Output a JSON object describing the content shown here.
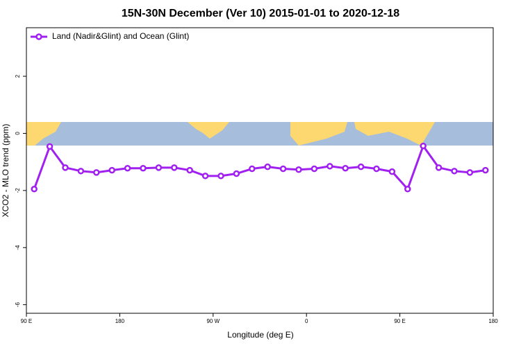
{
  "chart_data": {
    "type": "line",
    "title": "15N-30N December (Ver 10)   2015-01-01 to 2020-12-18",
    "x_label": "Longitude (deg E)",
    "y_label": "XCO2 - MLO trend (ppm)",
    "x": [
      97.5,
      112.5,
      127.5,
      142.5,
      157.5,
      172.5,
      187.5,
      202.5,
      217.5,
      232.5,
      247.5,
      262.5,
      277.5,
      292.5,
      307.5,
      322.5,
      337.5,
      352.5,
      367.5,
      382.5,
      397.5,
      412.5,
      427.5,
      442.5,
      457.5,
      472.5,
      487.5,
      502.5,
      517.5,
      532.5
    ],
    "series": [
      {
        "name": "Land (Nadir&Glint) and Ocean (Glint)",
        "color": "#a020f0",
        "values": [
          -1.95,
          -0.46,
          -1.2,
          -1.32,
          -1.37,
          -1.29,
          -1.22,
          -1.22,
          -1.2,
          -1.2,
          -1.29,
          -1.49,
          -1.49,
          -1.41,
          -1.24,
          -1.17,
          -1.24,
          -1.27,
          -1.24,
          -1.15,
          -1.22,
          -1.17,
          -1.24,
          -1.34,
          -1.95,
          -0.44,
          -1.2,
          -1.32,
          -1.37,
          -1.29
        ]
      }
    ],
    "xlim": [
      90,
      540
    ],
    "ylim": [
      -6.3,
      3.7
    ],
    "xticks": [
      {
        "value": 90,
        "label": "90 E"
      },
      180,
      {
        "value": 270,
        "label": "90 W"
      },
      {
        "value": 360,
        "label": "0"
      },
      {
        "value": 450,
        "label": "90 E"
      },
      {
        "value": 540,
        "label": "180"
      }
    ],
    "yticks": [
      -6,
      -4,
      -2,
      0,
      2
    ],
    "legend": "top-left"
  }
}
